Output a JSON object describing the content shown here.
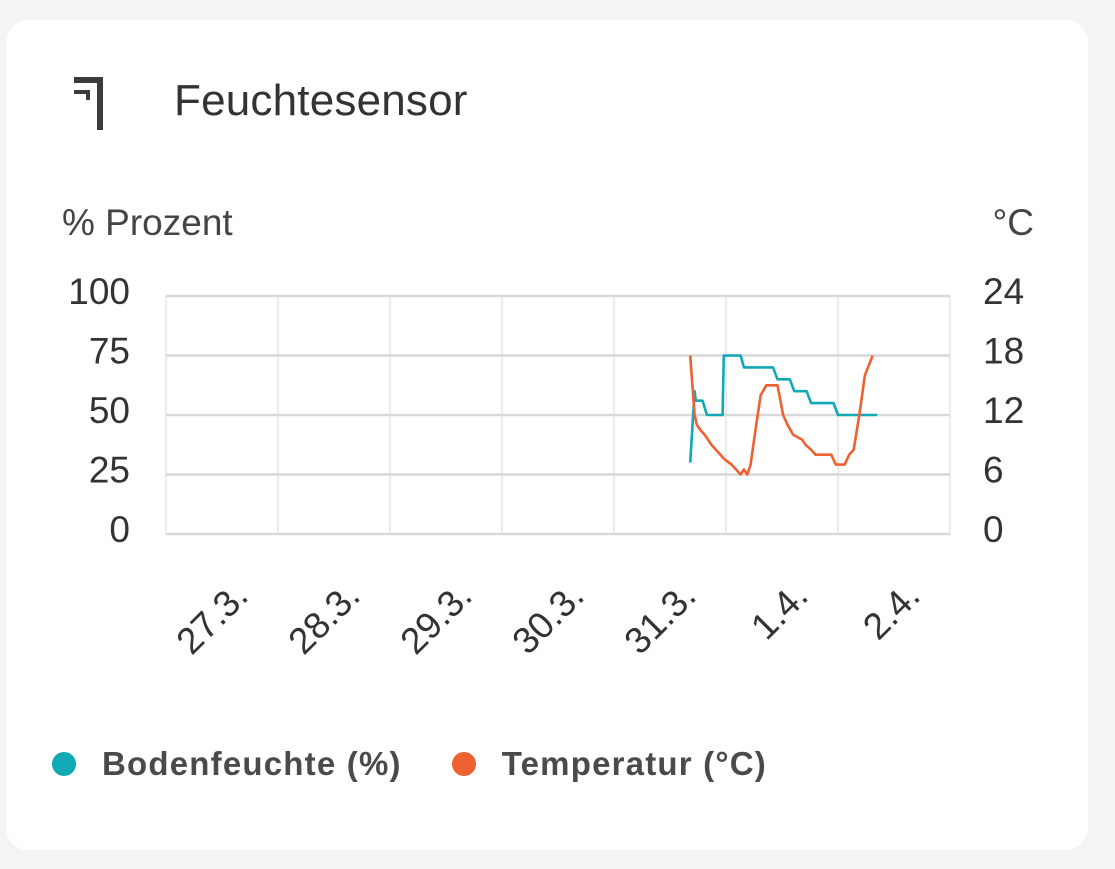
{
  "card": {
    "title": "Feuchtesensor",
    "icon": "sensor-bracket-icon"
  },
  "chart_data": {
    "type": "line",
    "left_axis_label": "% Prozent",
    "right_axis_label": "°C",
    "left_ylim": [
      0,
      100
    ],
    "right_ylim": [
      0,
      24
    ],
    "left_ticks": [
      "0",
      "25",
      "50",
      "75",
      "100"
    ],
    "right_ticks": [
      "0",
      "6",
      "12",
      "18",
      "24"
    ],
    "categories": [
      "27.3.",
      "28.3.",
      "29.3.",
      "30.3.",
      "31.3.",
      "1.4.",
      "2.4."
    ],
    "grid": true,
    "legend_position": "bottom",
    "series": [
      {
        "name": "Bodenfeuchte (%)",
        "axis": "left",
        "color": "#11a8b8",
        "points": [
          [
            4.68,
            30
          ],
          [
            4.72,
            60
          ],
          [
            4.73,
            56
          ],
          [
            4.79,
            56
          ],
          [
            4.83,
            50
          ],
          [
            4.97,
            50
          ],
          [
            4.98,
            75
          ],
          [
            5.13,
            75
          ],
          [
            5.16,
            70
          ],
          [
            5.42,
            70
          ],
          [
            5.46,
            65
          ],
          [
            5.57,
            65
          ],
          [
            5.61,
            60
          ],
          [
            5.72,
            60
          ],
          [
            5.76,
            55
          ],
          [
            5.96,
            55
          ],
          [
            6.0,
            50
          ],
          [
            6.35,
            50
          ]
        ]
      },
      {
        "name": "Temperatur (°C)",
        "axis": "right",
        "color": "#ee6130",
        "points": [
          [
            4.68,
            18
          ],
          [
            4.72,
            12
          ],
          [
            4.74,
            11
          ],
          [
            4.77,
            10.5
          ],
          [
            4.81,
            10
          ],
          [
            4.84,
            9.5
          ],
          [
            4.87,
            9
          ],
          [
            4.91,
            8.5
          ],
          [
            4.95,
            8
          ],
          [
            4.99,
            7.5
          ],
          [
            5.05,
            7
          ],
          [
            5.09,
            6.5
          ],
          [
            5.13,
            6
          ],
          [
            5.16,
            6.5
          ],
          [
            5.19,
            6
          ],
          [
            5.22,
            7
          ],
          [
            5.27,
            11
          ],
          [
            5.31,
            14
          ],
          [
            5.36,
            15
          ],
          [
            5.46,
            15
          ],
          [
            5.51,
            12
          ],
          [
            5.55,
            11
          ],
          [
            5.6,
            10
          ],
          [
            5.68,
            9.5
          ],
          [
            5.71,
            9
          ],
          [
            5.76,
            8.5
          ],
          [
            5.8,
            8
          ],
          [
            5.94,
            8
          ],
          [
            5.98,
            7
          ],
          [
            6.06,
            7
          ],
          [
            6.1,
            8
          ],
          [
            6.14,
            8.5
          ],
          [
            6.19,
            12
          ],
          [
            6.24,
            16
          ],
          [
            6.31,
            18
          ]
        ]
      }
    ]
  }
}
